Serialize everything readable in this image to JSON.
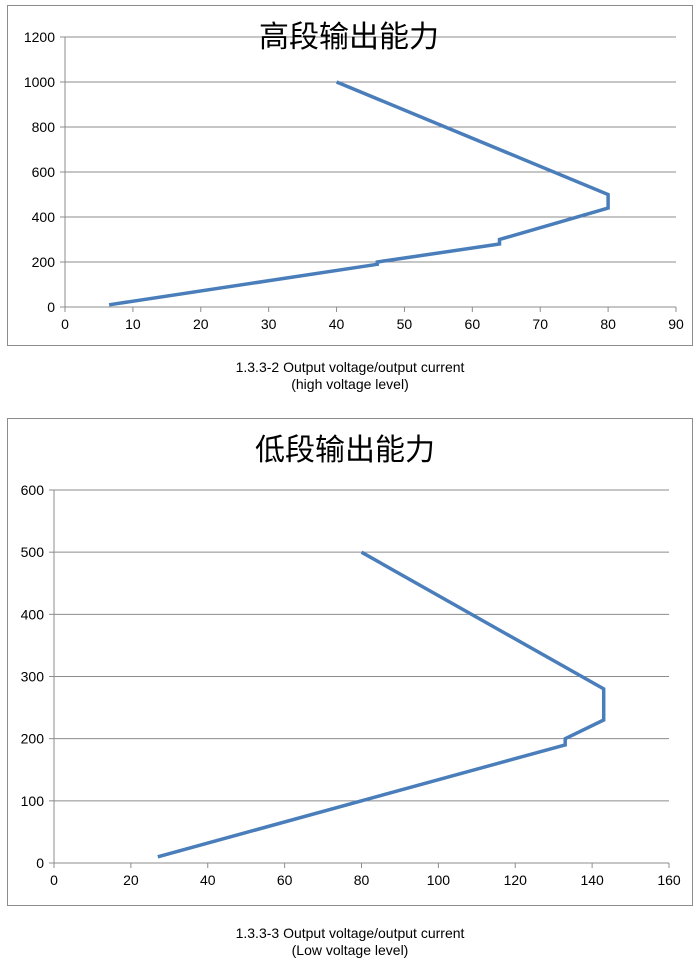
{
  "chart_data": [
    {
      "type": "line",
      "title": "高段输出能力",
      "xlabel": "",
      "ylabel": "",
      "xlim": [
        0,
        90
      ],
      "ylim": [
        0,
        1200
      ],
      "x_ticks": [
        0,
        10,
        20,
        30,
        40,
        50,
        60,
        70,
        80,
        90
      ],
      "y_ticks": [
        0,
        200,
        400,
        600,
        800,
        1000,
        1200
      ],
      "grid": "horizontal",
      "legend": "none",
      "line_color": "#4a7ebb",
      "series": [
        {
          "x": [
            40,
            80,
            80,
            64,
            64,
            46,
            46,
            6.5
          ],
          "y": [
            1000,
            500,
            440,
            300,
            280,
            200,
            190,
            10
          ]
        }
      ],
      "caption": [
        "1.3.3-2 Output voltage/output current",
        "(high voltage level)"
      ]
    },
    {
      "type": "line",
      "title": "低段输出能力",
      "xlabel": "",
      "ylabel": "",
      "xlim": [
        0,
        160
      ],
      "ylim": [
        0,
        600
      ],
      "x_ticks": [
        0,
        20,
        40,
        60,
        80,
        100,
        120,
        140,
        160
      ],
      "y_ticks": [
        0,
        100,
        200,
        300,
        400,
        500,
        600
      ],
      "grid": "horizontal",
      "legend": "none",
      "line_color": "#4a7ebb",
      "series": [
        {
          "x": [
            80,
            143,
            143,
            133,
            133,
            27
          ],
          "y": [
            500,
            280,
            230,
            200,
            190,
            10
          ]
        }
      ],
      "caption": [
        "1.3.3-3 Output voltage/output current",
        "(Low voltage level)"
      ]
    }
  ]
}
